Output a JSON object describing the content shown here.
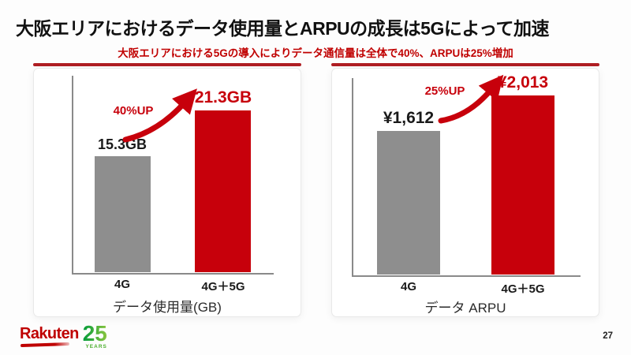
{
  "slide": {
    "title": "大阪エリアにおけるデータ使用量とARPUの成長は5Gによって加速",
    "subtitle": "大阪エリアにおける5Gの導入によりデータ通信量は全体で40%、ARPUは25%増加",
    "page_number": "27"
  },
  "logo": {
    "brand": "Rakuten",
    "years_number": "25",
    "years_label": "YEARS"
  },
  "charts": [
    {
      "axis_title": "データ使用量(GB)",
      "categories": [
        "4G",
        "4G＋5G"
      ],
      "value_labels": [
        "15.3GB",
        "21.3GB"
      ],
      "annotation": "40%UP"
    },
    {
      "axis_title": "データ ARPU",
      "categories": [
        "4G",
        "4G＋5G"
      ],
      "value_labels": [
        "¥1,612",
        "¥2,013"
      ],
      "annotation": "25%UP"
    }
  ],
  "chart_data": [
    {
      "type": "bar",
      "title": "データ使用量(GB)",
      "categories": [
        "4G",
        "4G＋5G"
      ],
      "values": [
        15.3,
        21.3
      ],
      "unit": "GB",
      "series_colors": [
        "#8E8E8E",
        "#C7000B"
      ],
      "annotation": "40%UP",
      "ylim": [
        0,
        26
      ],
      "grid": false,
      "legend": "none"
    },
    {
      "type": "bar",
      "title": "データ ARPU",
      "categories": [
        "4G",
        "4G＋5G"
      ],
      "values": [
        1612,
        2013
      ],
      "unit": "JPY",
      "series_colors": [
        "#8E8E8E",
        "#C7000B"
      ],
      "annotation": "25%UP",
      "ylim": [
        0,
        2450
      ],
      "grid": false,
      "legend": "none"
    }
  ],
  "colors": {
    "accent_red": "#C7000B",
    "divider_red": "#AF1E23",
    "subtitle_red": "#C00000",
    "bar_gray": "#8E8E8E",
    "logo_red": "#BF0000",
    "logo_green_dark": "#009B3A",
    "logo_green_light": "#8DC63F"
  }
}
